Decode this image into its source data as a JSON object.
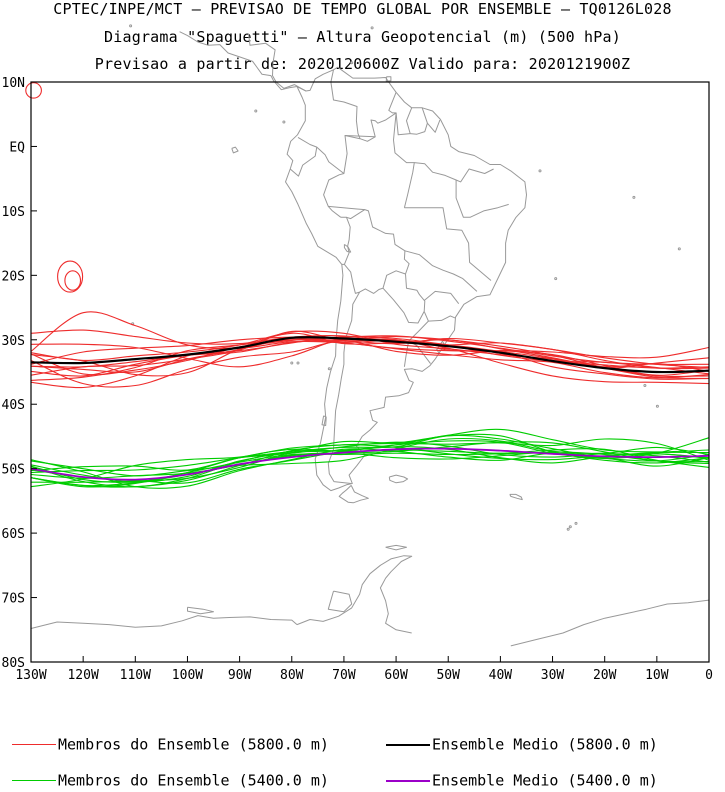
{
  "header": {
    "line1": "CPTEC/INPE/MCT – PREVISAO DE TEMPO GLOBAL POR ENSEMBLE – TQ0126L028",
    "line2": "Diagrama \"Spaguetti\" – Altura Geopotencial (m) (500 hPa)",
    "line3": "Previsao a partir de: 2020120600Z  Valido para: 2020121900Z"
  },
  "map": {
    "lon_range": [
      -130,
      0
    ],
    "lat_range": [
      -80,
      10
    ],
    "lat_labels": [
      "10N",
      "EQ",
      "10S",
      "20S",
      "30S",
      "40S",
      "50S",
      "60S",
      "70S",
      "80S"
    ],
    "lon_labels": [
      "130W",
      "120W",
      "110W",
      "100W",
      "90W",
      "80W",
      "70W",
      "60W",
      "50W",
      "40W",
      "30W",
      "20W",
      "10W",
      "0"
    ],
    "land_color": "#999999",
    "frame_color": "#000000"
  },
  "chart_data": {
    "type": "line",
    "x_unit": "longitude (deg)",
    "y_unit": "latitude (deg)",
    "xlim": [
      -130,
      0
    ],
    "ylim": [
      -80,
      10
    ],
    "x": [
      -130,
      -120,
      -110,
      -100,
      -90,
      -80,
      -70,
      -60,
      -50,
      -40,
      -30,
      -20,
      -10,
      0
    ],
    "mean_5800": [
      -33.5,
      -33.6,
      -33.0,
      -32.3,
      -31.2,
      -29.7,
      -29.8,
      -30.3,
      -31.0,
      -32.0,
      -33.3,
      -34.4,
      -35.0,
      -34.8
    ],
    "mean_5400": [
      -50.0,
      -51.3,
      -51.7,
      -50.9,
      -49.3,
      -48.2,
      -47.5,
      -47.0,
      -46.9,
      -47.2,
      -47.7,
      -48.1,
      -48.2,
      -48.0
    ],
    "members_5800": [
      [
        -29.0,
        -28.5,
        -29.5,
        -30.5,
        -30.6,
        -29.6,
        -29.4,
        -30.4,
        -30.0,
        -31.4,
        -32.8,
        -34.4,
        -35.8,
        -36.0
      ],
      [
        -31.8,
        -25.8,
        -27.8,
        -30.8,
        -31.3,
        -30.3,
        -30.5,
        -31.4,
        -32.3,
        -33.1,
        -33.5,
        -35.1,
        -35.9,
        -35.4
      ],
      [
        -34.1,
        -34.2,
        -33.4,
        -32.4,
        -31.9,
        -30.4,
        -30.2,
        -30.6,
        -29.8,
        -30.5,
        -31.5,
        -33.2,
        -34.4,
        -34.4
      ],
      [
        -32.0,
        -33.2,
        -32.5,
        -31.9,
        -30.8,
        -28.8,
        -29.0,
        -30.7,
        -31.4,
        -32.3,
        -33.0,
        -34.4,
        -33.6,
        -32.8
      ],
      [
        -35.5,
        -34.2,
        -34.0,
        -33.0,
        -31.6,
        -28.7,
        -30.1,
        -30.0,
        -31.6,
        -32.0,
        -34.2,
        -35.3,
        -36.1,
        -36.0
      ],
      [
        -32.3,
        -33.3,
        -35.4,
        -35.1,
        -31.4,
        -29.0,
        -30.6,
        -30.5,
        -30.8,
        -30.5,
        -31.5,
        -32.8,
        -33.8,
        -34.3
      ],
      [
        -33.2,
        -36.8,
        -37.1,
        -34.6,
        -32.7,
        -31.9,
        -30.2,
        -31.8,
        -32.4,
        -31.7,
        -31.9,
        -32.6,
        -32.7,
        -31.2
      ],
      [
        -36.3,
        -35.8,
        -34.3,
        -31.7,
        -30.8,
        -30.0,
        -30.0,
        -29.5,
        -30.0,
        -31.0,
        -32.4,
        -34.3,
        -35.6,
        -35.6
      ],
      [
        -30.7,
        -30.7,
        -31.2,
        -32.9,
        -34.2,
        -32.5,
        -29.9,
        -30.4,
        -30.8,
        -31.8,
        -32.9,
        -34.2,
        -33.7,
        -34.9
      ],
      [
        -32.2,
        -35.3,
        -34.7,
        -33.2,
        -31.1,
        -30.0,
        -30.5,
        -31.3,
        -31.7,
        -31.7,
        -32.3,
        -34.0,
        -35.5,
        -34.7
      ],
      [
        -34.1,
        -34.6,
        -35.0,
        -33.0,
        -31.5,
        -29.8,
        -30.4,
        -30.1,
        -30.9,
        -32.4,
        -33.3,
        -33.5,
        -34.3,
        -35.3
      ],
      [
        -36.6,
        -37.4,
        -35.6,
        -32.5,
        -31.1,
        -30.1,
        -29.6,
        -29.4,
        -30.2,
        -31.3,
        -32.5,
        -33.5,
        -33.8,
        -33.8
      ],
      [
        -33.8,
        -31.9,
        -31.3,
        -30.9,
        -30.0,
        -29.6,
        -29.8,
        -30.0,
        -31.3,
        -33.6,
        -35.6,
        -36.5,
        -36.6,
        -36.8
      ],
      [
        -34.9,
        -35.6,
        -33.8,
        -32.4,
        -31.7,
        -30.5,
        -29.5,
        -29.8,
        -30.8,
        -32.1,
        -33.2,
        -33.9,
        -34.4,
        -34.2
      ]
    ],
    "members_5400": [
      [
        -49.6,
        -51.7,
        -52.1,
        -51.2,
        -48.8,
        -47.5,
        -47.2,
        -46.3,
        -45.7,
        -45.9,
        -47.6,
        -48.4,
        -47.6,
        -45.2
      ],
      [
        -52.1,
        -52.1,
        -51.9,
        -51.5,
        -49.8,
        -47.5,
        -46.7,
        -46.6,
        -44.9,
        -45.4,
        -46.9,
        -48.2,
        -47.7,
        -48.4
      ],
      [
        -50.3,
        -49.7,
        -49.6,
        -50.2,
        -48.3,
        -47.3,
        -45.8,
        -46.0,
        -44.9,
        -44.9,
        -47.4,
        -48.7,
        -49.1,
        -48.3
      ],
      [
        -49.4,
        -51.0,
        -52.0,
        -50.6,
        -49.0,
        -47.8,
        -47.8,
        -47.6,
        -47.8,
        -47.7,
        -47.6,
        -48.4,
        -48.8,
        -47.8
      ],
      [
        -50.2,
        -51.3,
        -51.8,
        -52.2,
        -50.1,
        -48.7,
        -47.3,
        -46.6,
        -47.0,
        -48.3,
        -49.1,
        -48.1,
        -47.5,
        -47.5
      ],
      [
        -52.8,
        -51.6,
        -49.5,
        -48.6,
        -48.2,
        -46.8,
        -46.3,
        -46.1,
        -46.2,
        -46.0,
        -46.4,
        -45.4,
        -46.1,
        -48.7
      ],
      [
        -48.6,
        -50.5,
        -52.8,
        -52.7,
        -50.3,
        -48.6,
        -47.0,
        -47.3,
        -48.2,
        -48.7,
        -47.6,
        -48.3,
        -49.6,
        -48.3
      ],
      [
        -51.4,
        -52.8,
        -52.3,
        -50.6,
        -48.3,
        -47.0,
        -47.3,
        -47.1,
        -47.3,
        -47.6,
        -47.1,
        -47.0,
        -48.7,
        -49.8
      ],
      [
        -48.8,
        -50.0,
        -51.1,
        -50.3,
        -49.5,
        -49.2,
        -48.7,
        -46.9,
        -45.4,
        -45.7,
        -47.3,
        -47.6,
        -46.7,
        -47.8
      ],
      [
        -51.4,
        -52.6,
        -52.2,
        -50.9,
        -49.4,
        -47.9,
        -47.6,
        -48.3,
        -48.5,
        -48.0,
        -47.4,
        -47.8,
        -48.8,
        -48.9
      ],
      [
        -50.9,
        -51.5,
        -51.1,
        -50.7,
        -49.4,
        -48.0,
        -47.6,
        -47.3,
        -46.6,
        -45.9,
        -46.0,
        -47.4,
        -48.8,
        -49.2
      ],
      [
        -49.7,
        -52.0,
        -52.8,
        -51.5,
        -48.9,
        -47.3,
        -47.2,
        -46.3,
        -44.8,
        -43.9,
        -45.5,
        -47.1,
        -47.4,
        -47.1
      ],
      [
        -51.4,
        -52.6,
        -52.8,
        -51.8,
        -49.5,
        -47.2,
        -46.3,
        -46.7,
        -47.7,
        -48.4,
        -48.6,
        -48.0,
        -47.7,
        -48.3
      ],
      [
        -50.6,
        -50.3,
        -50.2,
        -49.5,
        -48.3,
        -47.6,
        -46.6,
        -45.9,
        -46.5,
        -47.8,
        -48.2,
        -47.7,
        -48.0,
        -49.0
      ]
    ],
    "closed_contours_5800": [
      {
        "lon": -129.5,
        "lat": 8.7,
        "rx": 1.5,
        "ry": 1.2
      },
      {
        "lon": -122.5,
        "lat": -20.2,
        "rx": 2.4,
        "ry": 2.4
      },
      {
        "lon": -122.0,
        "lat": -20.8,
        "rx": 1.5,
        "ry": 1.5
      }
    ],
    "colors": {
      "member_5800": "#ee2c2c",
      "member_5400": "#00cc00",
      "mean_5800": "#000000",
      "mean_5400": "#9b00c8"
    }
  },
  "legend": {
    "items": [
      {
        "label": "Membros do Ensemble (5800.0 m)",
        "color": "#ee2c2c"
      },
      {
        "label": "Ensemble Medio (5800.0 m)",
        "color": "#000000"
      },
      {
        "label": "Membros do Ensemble (5400.0 m)",
        "color": "#00cc00"
      },
      {
        "label": "Ensemble Medio (5400.0 m)",
        "color": "#9b00c8"
      }
    ]
  }
}
